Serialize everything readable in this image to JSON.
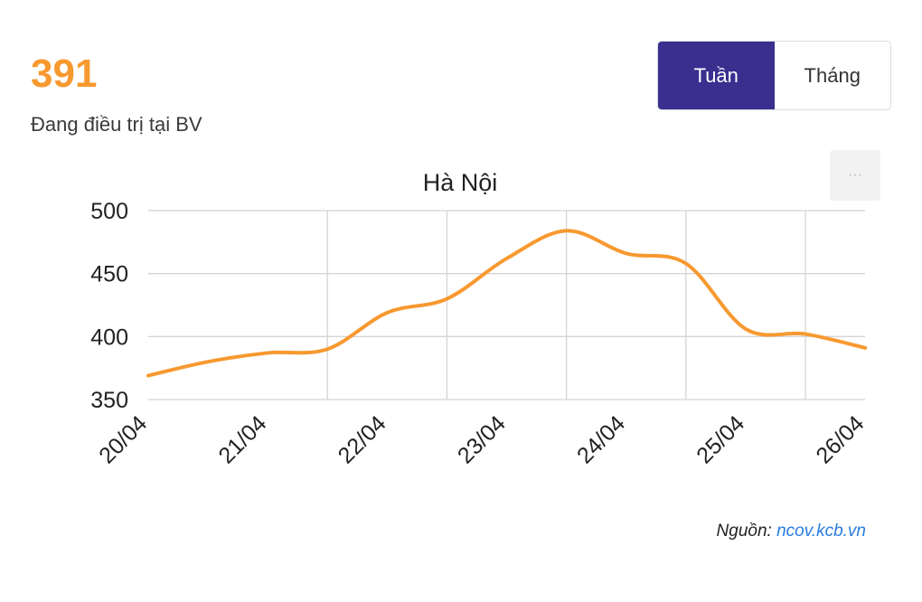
{
  "summary": {
    "value": "391",
    "label": "Đang điều trị tại BV"
  },
  "toggle": {
    "options": [
      "Tuần",
      "Tháng"
    ],
    "active": "Tuần"
  },
  "menu": {
    "label": "···"
  },
  "source": {
    "prefix": "Nguồn: ",
    "link_text": "ncov.kcb.vn"
  },
  "colors": {
    "accent": "#f7992f",
    "toggle_active": "#3a2e8f",
    "link": "#2a7de1"
  },
  "chart_data": {
    "type": "line",
    "title": "Hà Nội",
    "xlabel": "",
    "ylabel": "",
    "categories": [
      "20/04",
      "21/04",
      "22/04",
      "23/04",
      "24/04",
      "25/04",
      "26/04"
    ],
    "x": [
      "20/04",
      "20/04",
      "21/04",
      "21/04",
      "22/04",
      "22/04",
      "23/04",
      "23/04",
      "24/04",
      "24/04",
      "25/04",
      "25/04",
      "26/04"
    ],
    "values": [
      369,
      380,
      387,
      390,
      419,
      430,
      462,
      484,
      466,
      458,
      406,
      402,
      391
    ],
    "ylim": [
      350,
      500
    ],
    "yticks": [
      350,
      400,
      450,
      500
    ],
    "grid": true,
    "legend": "none",
    "color": "#f7992f"
  }
}
